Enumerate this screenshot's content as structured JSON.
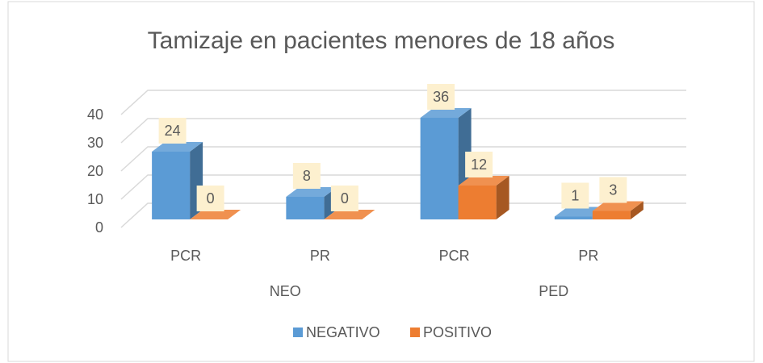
{
  "chart_data": {
    "type": "bar3d",
    "title": "Tamizaje en pacientes menores de 18 años",
    "categories": [
      "PCR",
      "PR",
      "PCR",
      "PR"
    ],
    "groups": [
      "NEO",
      "PED"
    ],
    "series": [
      {
        "name": "NEGATIVO",
        "color": "#5b9bd5",
        "values": [
          24,
          8,
          36,
          1
        ]
      },
      {
        "name": "POSITIVO",
        "color": "#ed7d31",
        "values": [
          0,
          0,
          12,
          3
        ]
      }
    ],
    "ylim": [
      0,
      40
    ],
    "yticks": [
      0,
      10,
      20,
      30,
      40
    ],
    "grid": true,
    "data_labels": true,
    "legend": "bottom"
  }
}
